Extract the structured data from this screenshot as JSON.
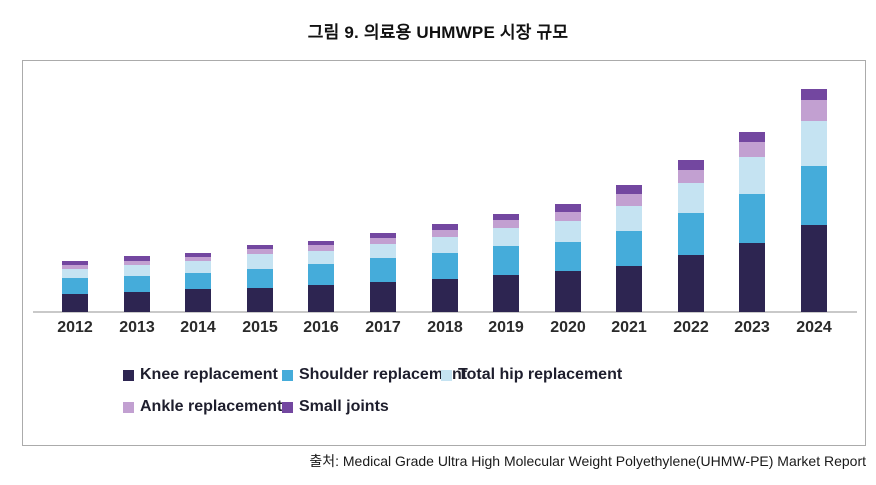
{
  "title": "그림 9. 의료용 UHMWPE 시장 규모",
  "source": "출처: Medical Grade Ultra High Molecular Weight Polyethylene(UHMW-PE) Market Report",
  "colors": {
    "knee": "#2d2551",
    "shoulder": "#45acda",
    "total_hip": "#c5e3f2",
    "ankle": "#c2a0d1",
    "small_joints": "#7347a0",
    "axis_line": "#c9c9c9",
    "box_border": "#ababab",
    "text": "#1a1a1a"
  },
  "chart_data": {
    "type": "bar",
    "stacked": true,
    "title": "그림 9. 의료용 UHMWPE 시장 규모",
    "xlabel": "",
    "ylabel": "",
    "categories": [
      "2012",
      "2013",
      "2014",
      "2015",
      "2016",
      "2017",
      "2018",
      "2019",
      "2020",
      "2021",
      "2022",
      "2023",
      "2024"
    ],
    "series": [
      {
        "name": "Knee replacement",
        "color": "#2d2551",
        "values": [
          18,
          20,
          23,
          24,
          27,
          30,
          33,
          37,
          41,
          46,
          57,
          69,
          87
        ]
      },
      {
        "name": "Shoulder replacement",
        "color": "#45acda",
        "values": [
          16,
          16,
          16,
          19,
          21,
          24,
          26,
          29,
          29,
          35,
          42,
          49,
          59
        ]
      },
      {
        "name": "Total hip replacement",
        "color": "#c5e3f2",
        "values": [
          9,
          11,
          12,
          15,
          13,
          14,
          16,
          18,
          21,
          25,
          30,
          37,
          45
        ]
      },
      {
        "name": "Ankle replacement",
        "color": "#c2a0d1",
        "values": [
          4,
          4,
          4,
          5,
          6,
          6,
          7,
          8,
          9,
          12,
          13,
          15,
          21
        ]
      },
      {
        "name": "Small joints",
        "color": "#7347a0",
        "values": [
          4,
          5,
          4,
          4,
          4,
          5,
          6,
          6,
          8,
          9,
          10,
          10,
          11
        ]
      }
    ],
    "totals": [
      51,
      56,
      59,
      67,
      71,
      79,
      88,
      98,
      108,
      127,
      152,
      180,
      223
    ],
    "units": "relative market size (no numeric axis shown in figure; values estimated from bar heights)",
    "ylim": [
      0,
      230
    ],
    "y_axis_shown": false,
    "grid": false,
    "legend_position": "bottom"
  }
}
